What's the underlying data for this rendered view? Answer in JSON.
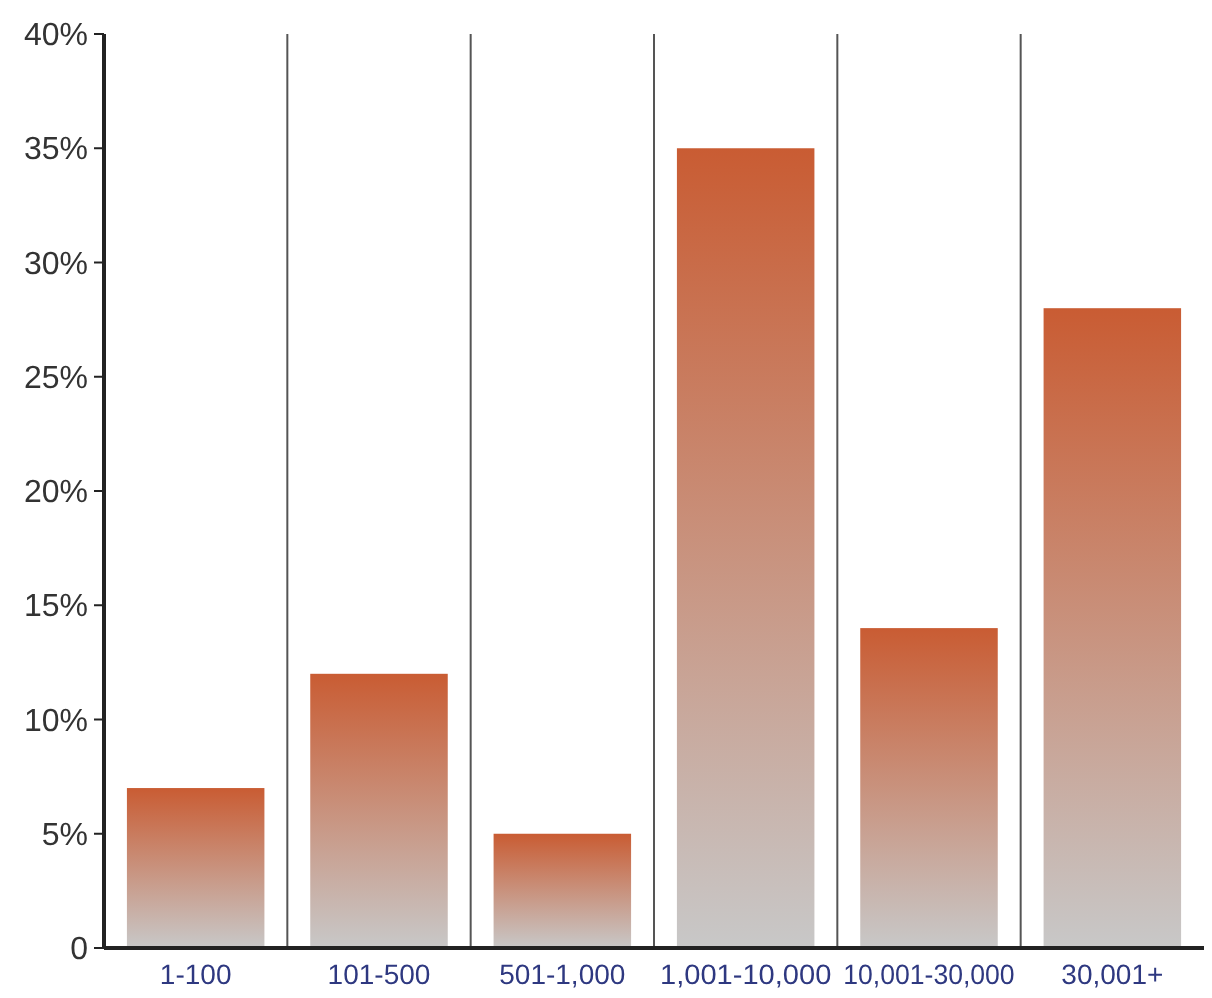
{
  "chart_data": {
    "type": "bar",
    "categories": [
      "1-100",
      "101-500",
      "501-1,000",
      "1,001-10,000",
      "10,001-30,000",
      "30,001+"
    ],
    "values": [
      7,
      12,
      5,
      35,
      14,
      28
    ],
    "color": "#c95c33",
    "ylim": [
      0,
      40
    ],
    "yticks": [
      {
        "value": 0,
        "label": "0"
      },
      {
        "value": 5,
        "label": "5%"
      },
      {
        "value": 10,
        "label": "10%"
      },
      {
        "value": 15,
        "label": "15%"
      },
      {
        "value": 20,
        "label": "20%"
      },
      {
        "value": 25,
        "label": "25%"
      },
      {
        "value": 30,
        "label": "30%"
      },
      {
        "value": 35,
        "label": "35%"
      },
      {
        "value": 40,
        "label": "40%"
      }
    ],
    "grid": "x"
  }
}
